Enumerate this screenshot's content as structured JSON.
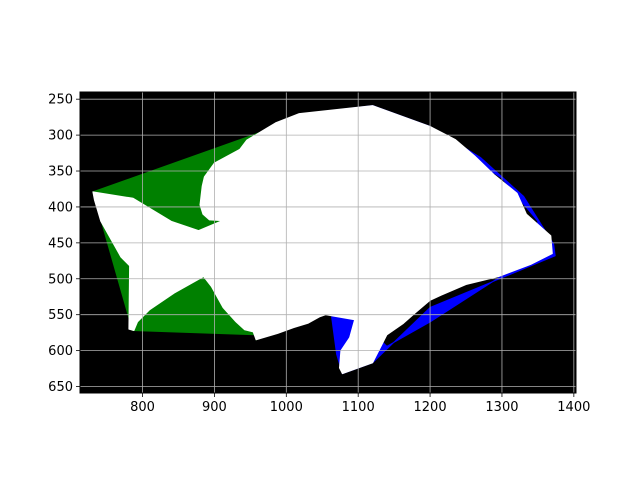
{
  "chart_data": {
    "type": "area",
    "title": "",
    "xlabel": "",
    "ylabel": "",
    "xlim": [
      713,
      1403
    ],
    "ylim": [
      659,
      240
    ],
    "y_inverted": true,
    "grid": true,
    "x_ticks": [
      800,
      900,
      1000,
      1100,
      1200,
      1300,
      1400
    ],
    "y_ticks": [
      250,
      300,
      350,
      400,
      450,
      500,
      550,
      600,
      650
    ],
    "colors": {
      "background": "#000000",
      "green_region": "#008000",
      "blue_region": "#0000ff",
      "white_region": "#ffffff",
      "grid": "#b0b0b0"
    },
    "series": [
      {
        "color": "#008000",
        "points": [
          [
            731,
            379
          ],
          [
            1043,
            268
          ],
          [
            957,
            578
          ],
          [
            786,
            572
          ],
          [
            731,
            379
          ]
        ]
      },
      {
        "color": "#008000",
        "points": [
          [
            952,
            553
          ],
          [
            1055,
            548
          ],
          [
            958,
            585
          ],
          [
            952,
            553
          ]
        ]
      },
      {
        "color": "#0000ff",
        "points": [
          [
            1043,
            268
          ],
          [
            1120,
            259
          ],
          [
            1200,
            288
          ],
          [
            1270,
            331
          ],
          [
            1330,
            385
          ],
          [
            1372,
            452
          ],
          [
            1374,
            468
          ],
          [
            1345,
            480
          ],
          [
            1200,
            540
          ],
          [
            1120,
            617
          ],
          [
            1078,
            632
          ],
          [
            1070,
            605
          ],
          [
            1063,
            553
          ],
          [
            1100,
            555
          ],
          [
            1140,
            594
          ],
          [
            1200,
            560
          ],
          [
            1340,
            470
          ],
          [
            1350,
            420
          ],
          [
            1300,
            360
          ],
          [
            1200,
            295
          ],
          [
            1120,
            262
          ],
          [
            1043,
            268
          ]
        ]
      },
      {
        "color": "#ffffff",
        "points": [
          [
            731,
            379
          ],
          [
            787,
            388
          ],
          [
            840,
            420
          ],
          [
            878,
            433
          ],
          [
            911,
            419
          ],
          [
            893,
            418
          ],
          [
            884,
            410
          ],
          [
            880,
            397
          ],
          [
            883,
            371
          ],
          [
            886,
            358
          ],
          [
            900,
            339
          ],
          [
            935,
            320
          ],
          [
            945,
            307
          ],
          [
            985,
            283
          ],
          [
            1018,
            270
          ],
          [
            1120,
            259
          ],
          [
            1200,
            288
          ],
          [
            1235,
            306
          ],
          [
            1262,
            329
          ],
          [
            1290,
            356
          ],
          [
            1321,
            381
          ],
          [
            1334,
            410
          ],
          [
            1368,
            440
          ],
          [
            1370,
            465
          ],
          [
            1340,
            480
          ],
          [
            1295,
            497
          ],
          [
            1250,
            508
          ],
          [
            1215,
            523
          ],
          [
            1200,
            530
          ],
          [
            1180,
            547
          ],
          [
            1163,
            562
          ],
          [
            1140,
            578
          ],
          [
            1120,
            617
          ],
          [
            1078,
            632
          ],
          [
            1074,
            624
          ],
          [
            1076,
            600
          ],
          [
            1088,
            582
          ],
          [
            1095,
            557
          ],
          [
            1055,
            550
          ],
          [
            1046,
            553
          ],
          [
            1030,
            562
          ],
          [
            1010,
            568
          ],
          [
            988,
            576
          ],
          [
            958,
            585
          ],
          [
            954,
            574
          ],
          [
            942,
            571
          ],
          [
            930,
            560
          ],
          [
            912,
            540
          ],
          [
            896,
            511
          ],
          [
            885,
            497
          ],
          [
            844,
            520
          ],
          [
            810,
            543
          ],
          [
            793,
            560
          ],
          [
            788,
            572
          ],
          [
            781,
            570
          ],
          [
            782,
            482
          ],
          [
            770,
            470
          ],
          [
            742,
            420
          ],
          [
            733,
            390
          ],
          [
            731,
            379
          ]
        ]
      }
    ]
  }
}
